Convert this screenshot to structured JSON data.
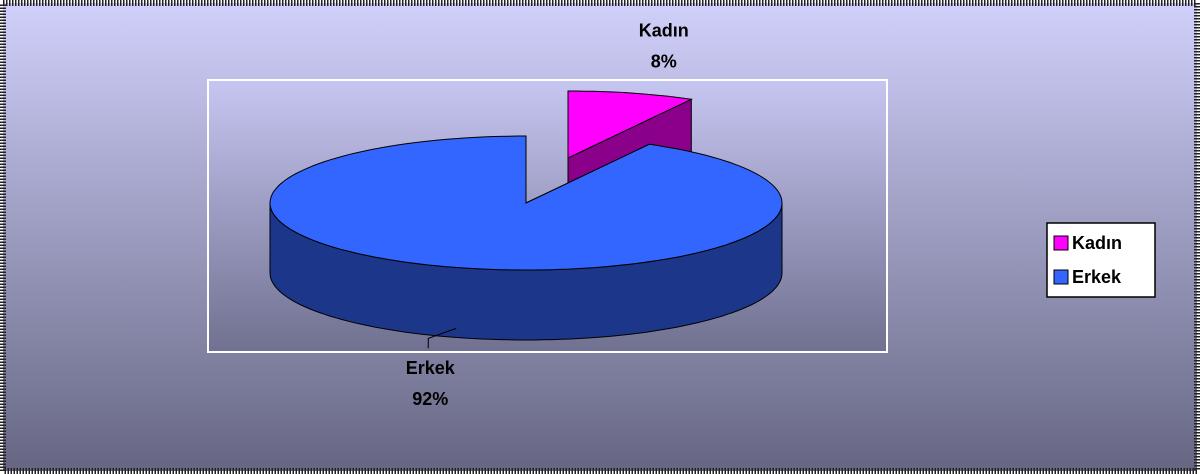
{
  "chart_data": {
    "type": "pie",
    "categories": [
      "Kadın",
      "Erkek"
    ],
    "values": [
      8,
      92
    ],
    "value_labels": [
      "8%",
      "92%"
    ],
    "colors": [
      "#ff00ff",
      "#3366ff"
    ],
    "legend": "right"
  }
}
